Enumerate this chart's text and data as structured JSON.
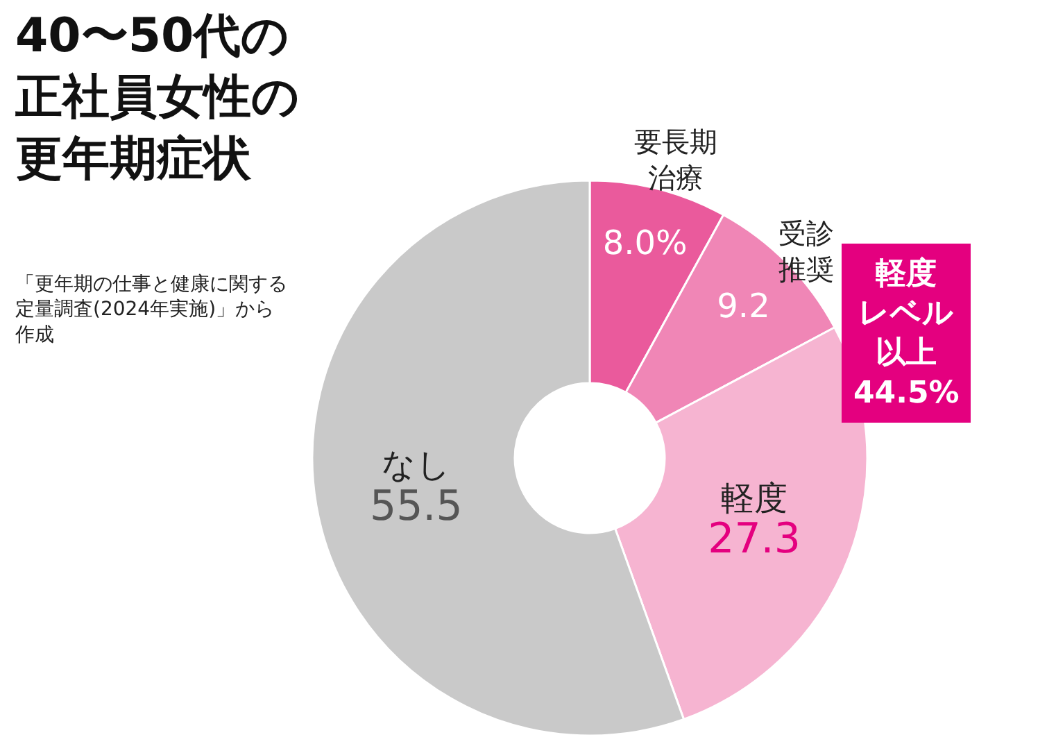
{
  "chart_data": {
    "type": "donut",
    "title": "40〜50代の正社員女性の更年期症状",
    "categories": [
      "要長期治療",
      "受診推奨",
      "軽度",
      "なし"
    ],
    "values": [
      8.0,
      9.2,
      27.3,
      55.5
    ],
    "colors": [
      "#ea5a9c",
      "#f086b6",
      "#f6b4d1",
      "#c9c9c9"
    ],
    "value_labels": [
      "8.0%",
      "9.2",
      "27.3",
      "55.5"
    ],
    "annotations": [
      "軽度レベル以上44.5%",
      "「更年期の仕事と健康に関する定量調査(2024年実施)」から作成"
    ]
  }
}
